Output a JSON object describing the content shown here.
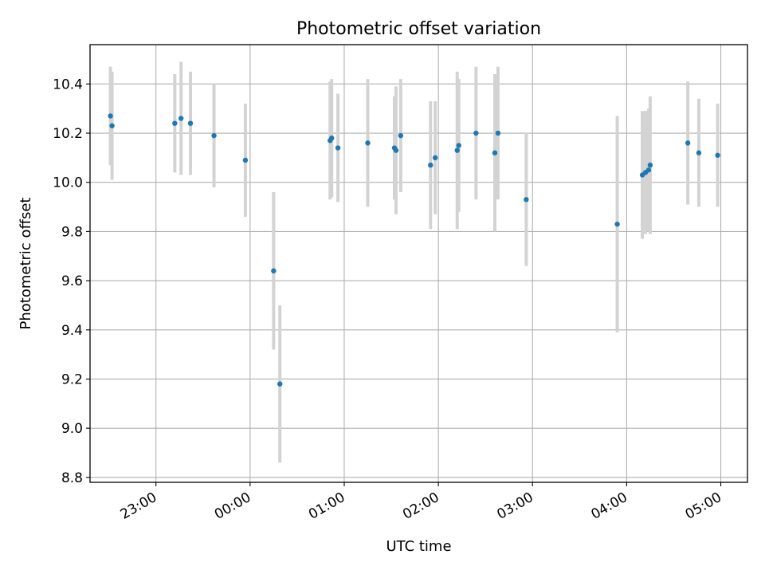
{
  "chart_data": {
    "type": "scatter",
    "title": "Photometric offset variation",
    "xlabel": "UTC time",
    "ylabel": "Photometric offset",
    "grid": true,
    "x_tick_labels": [
      "23:00",
      "00:00",
      "01:00",
      "02:00",
      "03:00",
      "04:00",
      "05:00"
    ],
    "y_tick_labels": [
      "8.8",
      "9.0",
      "9.2",
      "9.4",
      "9.6",
      "9.8",
      "10.0",
      "10.2",
      "10.4"
    ],
    "xlim": [
      "22:18",
      "05:17"
    ],
    "ylim": [
      8.78,
      10.56
    ],
    "point_color": "#1f77b4",
    "errorbar_color": "#d3d3d3",
    "points": [
      {
        "x": "22:31",
        "y": 10.27,
        "yerr": 0.2
      },
      {
        "x": "22:32",
        "y": 10.23,
        "yerr": 0.22
      },
      {
        "x": "23:12",
        "y": 10.24,
        "yerr": 0.2
      },
      {
        "x": "23:16",
        "y": 10.26,
        "yerr": 0.23
      },
      {
        "x": "23:22",
        "y": 10.24,
        "yerr": 0.21
      },
      {
        "x": "23:37",
        "y": 10.19,
        "yerr": 0.21
      },
      {
        "x": "23:57",
        "y": 10.09,
        "yerr": 0.23
      },
      {
        "x": "00:15",
        "y": 9.64,
        "yerr": 0.32
      },
      {
        "x": "00:19",
        "y": 9.18,
        "yerr": 0.32
      },
      {
        "x": "00:51",
        "y": 10.17,
        "yerr": 0.24
      },
      {
        "x": "00:52",
        "y": 10.18,
        "yerr": 0.24
      },
      {
        "x": "00:56",
        "y": 10.14,
        "yerr": 0.22
      },
      {
        "x": "01:15",
        "y": 10.16,
        "yerr": 0.26
      },
      {
        "x": "01:32",
        "y": 10.14,
        "yerr": 0.21
      },
      {
        "x": "01:33",
        "y": 10.13,
        "yerr": 0.26
      },
      {
        "x": "01:36",
        "y": 10.19,
        "yerr": 0.23
      },
      {
        "x": "01:55",
        "y": 10.07,
        "yerr": 0.26
      },
      {
        "x": "01:58",
        "y": 10.1,
        "yerr": 0.23
      },
      {
        "x": "02:12",
        "y": 10.13,
        "yerr": 0.32
      },
      {
        "x": "02:13",
        "y": 10.15,
        "yerr": 0.27
      },
      {
        "x": "02:24",
        "y": 10.2,
        "yerr": 0.27
      },
      {
        "x": "02:36",
        "y": 10.12,
        "yerr": 0.32
      },
      {
        "x": "02:38",
        "y": 10.2,
        "yerr": 0.27
      },
      {
        "x": "02:56",
        "y": 9.93,
        "yerr": 0.27
      },
      {
        "x": "03:54",
        "y": 9.83,
        "yerr": 0.44
      },
      {
        "x": "04:10",
        "y": 10.03,
        "yerr": 0.26
      },
      {
        "x": "04:12",
        "y": 10.04,
        "yerr": 0.25
      },
      {
        "x": "04:14",
        "y": 10.05,
        "yerr": 0.25
      },
      {
        "x": "04:15",
        "y": 10.07,
        "yerr": 0.28
      },
      {
        "x": "04:39",
        "y": 10.16,
        "yerr": 0.25
      },
      {
        "x": "04:46",
        "y": 10.12,
        "yerr": 0.22
      },
      {
        "x": "04:58",
        "y": 10.11,
        "yerr": 0.21
      }
    ]
  }
}
